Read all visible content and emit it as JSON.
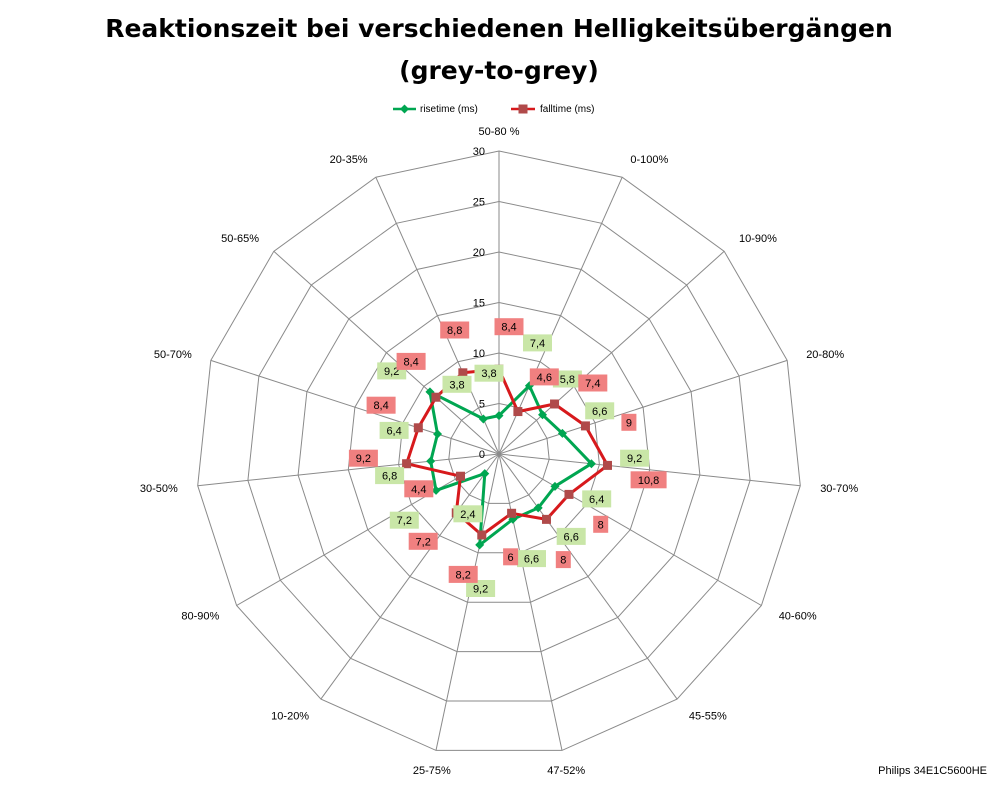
{
  "chart_data": {
    "type": "radar",
    "title": "Reaktionszeit bei verschiedenen Helligkeitsübergängen",
    "subtitle": "(grey-to-grey)",
    "categories": [
      "50-80 %",
      "0-100%",
      "10-90%",
      "20-80%",
      "30-70%",
      "40-60%",
      "45-55%",
      "47-52%",
      "25-75%",
      "10-20%",
      "80-90%",
      "30-50%",
      "50-70%",
      "50-65%",
      "20-35%"
    ],
    "rlim": [
      0,
      30
    ],
    "ticks": [
      "0",
      "5",
      "10",
      "15",
      "20",
      "25",
      "30"
    ],
    "grid": true,
    "legend_position": "top",
    "series": [
      {
        "name": "risetime (ms)",
        "color": "#00a651",
        "marker": "diamond",
        "values": [
          3.8,
          7.4,
          5.8,
          6.6,
          9.2,
          6.4,
          6.6,
          6.6,
          9.2,
          2.4,
          7.2,
          6.8,
          6.4,
          9.2,
          3.8
        ],
        "labels": [
          "3,8",
          "7,4",
          "5,8",
          "6,6",
          "9,2",
          "6,4",
          "6,6",
          "6,6",
          "9,2",
          "2,4",
          "7,2",
          "6,8",
          "6,4",
          "9,2",
          "3,8"
        ],
        "label_color": "#c9e6a7"
      },
      {
        "name": "falltime (ms)",
        "color": "#d7191c",
        "marker": "square",
        "values": [
          8.4,
          4.6,
          7.4,
          9.0,
          10.8,
          8.0,
          8.0,
          6.0,
          8.2,
          7.2,
          4.4,
          9.2,
          8.4,
          8.4,
          8.8
        ],
        "labels": [
          "8,4",
          "4,6",
          "7,4",
          "9",
          "10,8",
          "8",
          "8",
          "6",
          "8,2",
          "7,2",
          "4,4",
          "9,2",
          "8,4",
          "8,4",
          "8,8"
        ],
        "label_color": "#f08080"
      }
    ]
  },
  "footer": "Philips 34E1C5600HE"
}
